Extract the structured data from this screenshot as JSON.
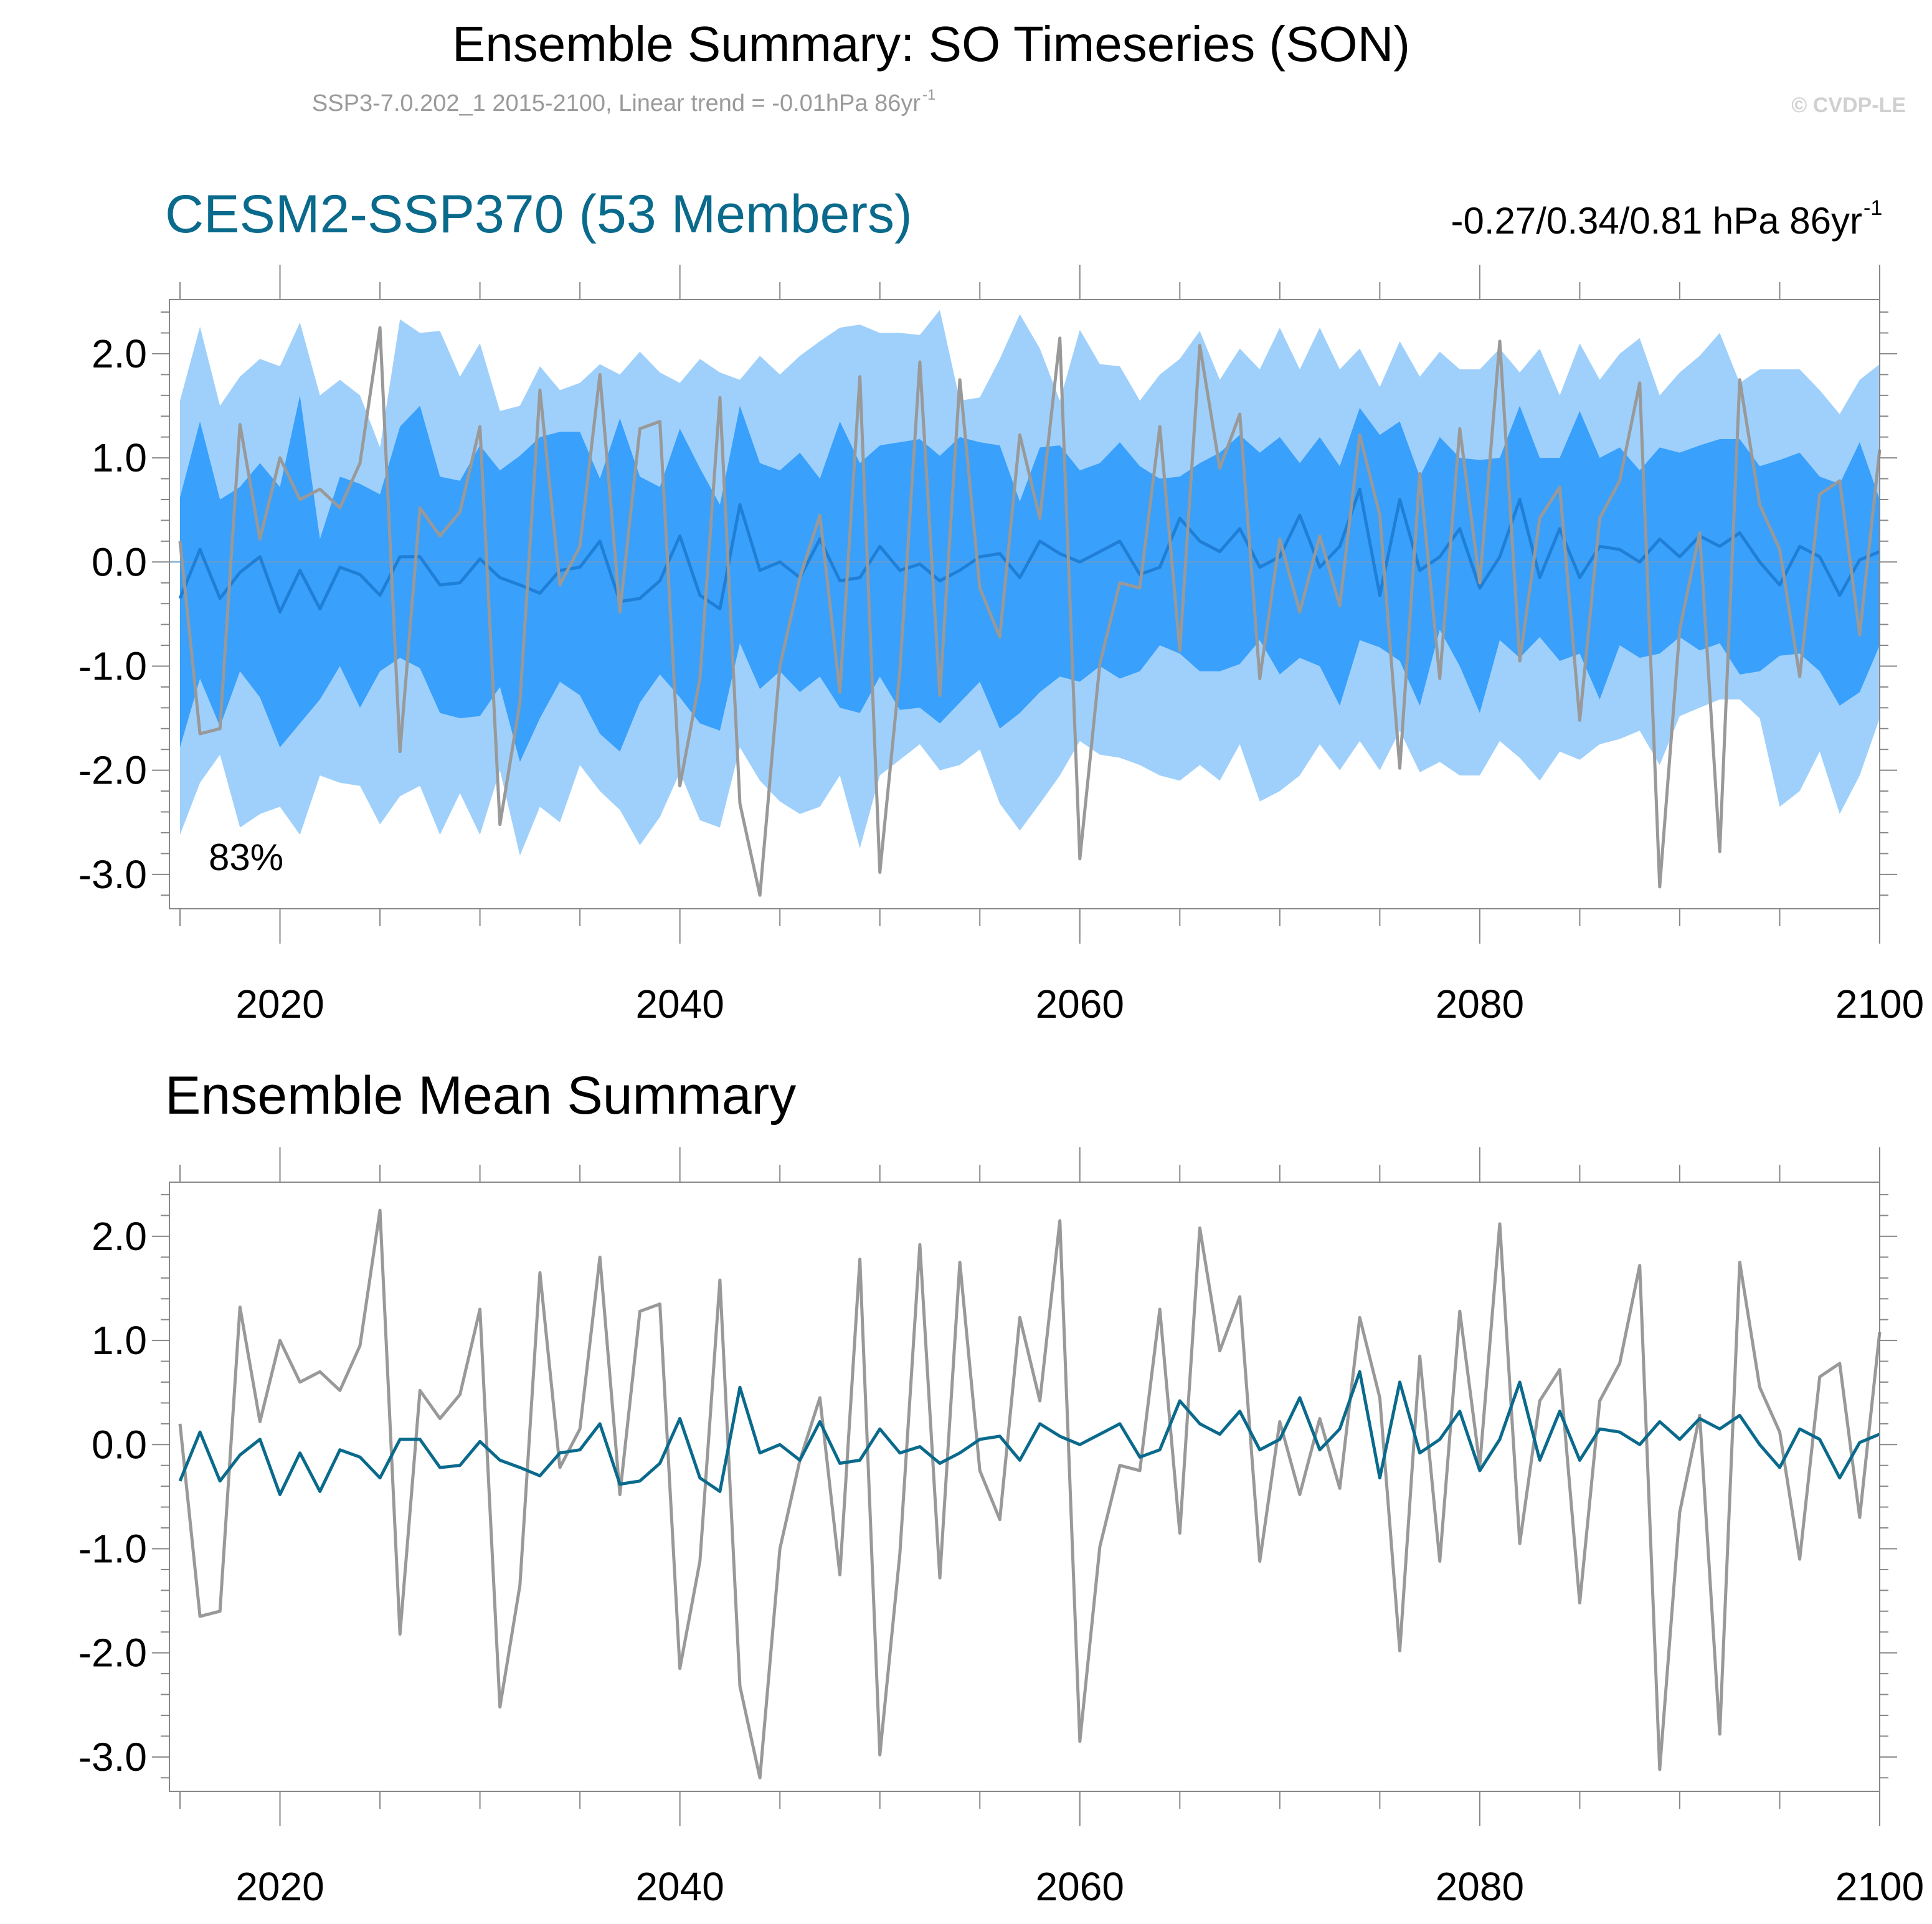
{
  "figure": {
    "title": "Ensemble Summary: SO Timeseries (SON)",
    "subtitle_main": "SSP3-7.0.202_1 2015-2100, Linear trend = -0.01hPa 86yr",
    "subtitle_sup": "-1",
    "copyright": "© CVDP-LE"
  },
  "panels": {
    "top": {
      "title": "CESM2-SSP370 (53 Members)",
      "stats_main": "-0.27/0.34/0.81 hPa 86yr",
      "stats_sup": "-1",
      "percent_label": "83%"
    },
    "bottom": {
      "title": "Ensemble Mean Summary"
    }
  },
  "colors": {
    "outer_band": "#9fd0fb",
    "inner_band": "#39a0fb",
    "ensemble_mean_top": "#1f7fd6",
    "ensemble_mean_bottom": "#0a6a8c",
    "observations": "#999999",
    "frame": "#888888"
  },
  "chart_data": [
    {
      "type": "area",
      "title": "CESM2-SSP370 (53 Members)",
      "xlim": [
        2014,
        2100
      ],
      "ylim": [
        -3.33,
        2.52
      ],
      "x_ticks": [
        2020,
        2040,
        2060,
        2080,
        2100
      ],
      "y_ticks": [
        2.0,
        1.0,
        0.0,
        -1.0,
        -2.0,
        -3.0
      ],
      "y_tick_labels": [
        "2.0",
        "1.0",
        "0.0",
        "-1.0",
        "-2.0",
        "-3.0"
      ],
      "x": [
        2015,
        2016,
        2017,
        2018,
        2019,
        2020,
        2021,
        2022,
        2023,
        2024,
        2025,
        2026,
        2027,
        2028,
        2029,
        2030,
        2031,
        2032,
        2033,
        2034,
        2035,
        2036,
        2037,
        2038,
        2039,
        2040,
        2041,
        2042,
        2043,
        2044,
        2045,
        2046,
        2047,
        2048,
        2049,
        2050,
        2051,
        2052,
        2053,
        2054,
        2055,
        2056,
        2057,
        2058,
        2059,
        2060,
        2061,
        2062,
        2063,
        2064,
        2065,
        2066,
        2067,
        2068,
        2069,
        2070,
        2071,
        2072,
        2073,
        2074,
        2075,
        2076,
        2077,
        2078,
        2079,
        2080,
        2081,
        2082,
        2083,
        2084,
        2085,
        2086,
        2087,
        2088,
        2089,
        2090,
        2091,
        2092,
        2093,
        2094,
        2095,
        2096,
        2097,
        2098,
        2099,
        2100
      ],
      "series": [
        {
          "name": "outer_upper",
          "values": [
            1.55,
            2.26,
            1.5,
            1.78,
            1.95,
            1.88,
            2.3,
            1.6,
            1.75,
            1.6,
            1.1,
            2.33,
            2.2,
            2.22,
            1.78,
            2.1,
            1.45,
            1.5,
            1.88,
            1.65,
            1.72,
            1.9,
            1.8,
            2.02,
            1.82,
            1.72,
            1.95,
            1.82,
            1.75,
            1.98,
            1.8,
            1.98,
            2.12,
            2.25,
            2.28,
            2.2,
            2.2,
            2.18,
            2.42,
            1.55,
            1.58,
            1.95,
            2.38,
            2.05,
            1.55,
            2.23,
            1.9,
            1.88,
            1.55,
            1.8,
            1.95,
            2.22,
            1.75,
            2.05,
            1.85,
            2.25,
            1.85,
            2.25,
            1.85,
            2.05,
            1.68,
            2.12,
            1.78,
            2.02,
            1.85,
            1.85,
            2.05,
            1.82,
            2.05,
            1.6,
            2.1,
            1.75,
            2.0,
            2.15,
            1.6,
            1.82,
            1.98,
            2.2,
            1.72,
            1.85,
            1.85,
            1.85,
            1.65,
            1.42,
            1.75,
            1.9
          ]
        },
        {
          "name": "inner_upper",
          "values": [
            0.62,
            1.35,
            0.6,
            0.72,
            0.95,
            0.72,
            1.6,
            0.22,
            0.82,
            0.75,
            0.65,
            1.3,
            1.5,
            0.82,
            0.78,
            1.12,
            0.88,
            1.02,
            1.2,
            1.25,
            1.25,
            0.8,
            1.38,
            0.82,
            0.72,
            1.28,
            0.9,
            0.55,
            1.5,
            0.95,
            0.88,
            1.05,
            0.8,
            1.35,
            0.95,
            1.12,
            1.15,
            1.18,
            1.02,
            1.2,
            1.15,
            1.12,
            0.58,
            1.1,
            1.12,
            0.88,
            0.95,
            1.15,
            0.92,
            0.8,
            0.82,
            0.95,
            1.05,
            1.22,
            1.05,
            1.2,
            0.95,
            1.2,
            0.92,
            1.48,
            1.22,
            1.35,
            0.82,
            1.2,
            1.0,
            0.98,
            1.0,
            1.5,
            1.0,
            1.0,
            1.45,
            1.0,
            1.1,
            0.88,
            1.1,
            1.05,
            1.12,
            1.18,
            1.18,
            0.92,
            0.98,
            1.05,
            0.82,
            0.75,
            1.15,
            0.6
          ]
        },
        {
          "name": "inner_lower",
          "values": [
            -1.78,
            -1.12,
            -1.58,
            -1.05,
            -1.3,
            -1.78,
            -1.55,
            -1.32,
            -1.0,
            -1.4,
            -1.05,
            -0.92,
            -1.02,
            -1.45,
            -1.5,
            -1.48,
            -1.2,
            -1.92,
            -1.5,
            -1.15,
            -1.28,
            -1.65,
            -1.82,
            -1.35,
            -1.08,
            -1.3,
            -1.55,
            -1.62,
            -0.78,
            -1.22,
            -1.05,
            -1.25,
            -1.1,
            -1.4,
            -1.45,
            -1.1,
            -1.42,
            -1.4,
            -1.55,
            -1.35,
            -1.15,
            -1.6,
            -1.45,
            -1.25,
            -1.1,
            -1.15,
            -1.0,
            -1.12,
            -1.05,
            -0.8,
            -0.88,
            -1.05,
            -1.05,
            -0.98,
            -0.75,
            -1.08,
            -0.92,
            -1.0,
            -1.38,
            -0.75,
            -0.82,
            -0.95,
            -1.38,
            -0.65,
            -1.0,
            -1.45,
            -0.75,
            -0.92,
            -0.72,
            -0.95,
            -0.88,
            -1.32,
            -0.8,
            -0.92,
            -0.88,
            -0.72,
            -0.85,
            -0.78,
            -1.08,
            -1.05,
            -0.9,
            -0.88,
            -1.05,
            -1.38,
            -1.25,
            -0.8
          ]
        },
        {
          "name": "outer_lower",
          "values": [
            -2.62,
            -2.12,
            -1.85,
            -2.55,
            -2.42,
            -2.35,
            -2.62,
            -2.05,
            -2.12,
            -2.15,
            -2.52,
            -2.25,
            -2.15,
            -2.62,
            -2.22,
            -2.62,
            -2.0,
            -2.82,
            -2.35,
            -2.5,
            -1.95,
            -2.2,
            -2.38,
            -2.72,
            -2.45,
            -2.02,
            -2.48,
            -2.55,
            -1.78,
            -2.1,
            -2.3,
            -2.42,
            -2.35,
            -2.05,
            -2.75,
            -2.05,
            -1.9,
            -1.75,
            -2.0,
            -1.95,
            -1.8,
            -2.32,
            -2.58,
            -2.32,
            -2.05,
            -1.72,
            -1.85,
            -1.88,
            -1.95,
            -2.05,
            -2.1,
            -1.95,
            -2.1,
            -1.75,
            -2.3,
            -2.2,
            -2.05,
            -1.75,
            -2.0,
            -1.72,
            -2.0,
            -1.62,
            -2.02,
            -1.92,
            -2.05,
            -2.05,
            -1.72,
            -1.88,
            -2.1,
            -1.82,
            -1.9,
            -1.75,
            -1.7,
            -1.62,
            -1.95,
            -1.48,
            -1.4,
            -1.32,
            -1.32,
            -1.5,
            -2.35,
            -2.2,
            -1.82,
            -2.42,
            -2.05,
            -1.5
          ]
        },
        {
          "name": "ensemble_mean",
          "values": [
            -0.35,
            0.12,
            -0.35,
            -0.1,
            0.05,
            -0.48,
            -0.08,
            -0.45,
            -0.05,
            -0.12,
            -0.32,
            0.05,
            0.05,
            -0.22,
            -0.2,
            0.03,
            -0.15,
            -0.22,
            -0.3,
            -0.08,
            -0.05,
            0.2,
            -0.38,
            -0.35,
            -0.18,
            0.25,
            -0.32,
            -0.45,
            0.55,
            -0.08,
            0.0,
            -0.15,
            0.22,
            -0.18,
            -0.15,
            0.15,
            -0.08,
            -0.02,
            -0.18,
            -0.08,
            0.05,
            0.08,
            -0.15,
            0.2,
            0.08,
            0.0,
            0.1,
            0.2,
            -0.12,
            -0.05,
            0.42,
            0.2,
            0.1,
            0.32,
            -0.05,
            0.05,
            0.45,
            -0.05,
            0.15,
            0.7,
            -0.32,
            0.6,
            -0.08,
            0.05,
            0.32,
            -0.25,
            0.05,
            0.6,
            -0.15,
            0.32,
            -0.15,
            0.15,
            0.12,
            0.0,
            0.22,
            0.05,
            0.25,
            0.15,
            0.28,
            0.0,
            -0.22,
            0.15,
            0.05,
            -0.32,
            0.02,
            0.1
          ]
        },
        {
          "name": "observations",
          "values": [
            0.2,
            -1.65,
            -1.6,
            1.32,
            0.22,
            1.0,
            0.6,
            0.7,
            0.52,
            0.95,
            2.25,
            -1.82,
            0.52,
            0.25,
            0.48,
            1.3,
            -2.52,
            -1.35,
            1.65,
            -0.22,
            0.15,
            1.8,
            -0.48,
            1.28,
            1.35,
            -2.15,
            -1.12,
            1.58,
            -2.32,
            -3.2,
            -1.0,
            -0.15,
            0.45,
            -1.25,
            1.78,
            -2.98,
            -1.05,
            1.92,
            -1.28,
            1.75,
            -0.25,
            -0.72,
            1.22,
            0.42,
            2.15,
            -2.85,
            -0.98,
            -0.2,
            -0.25,
            1.3,
            -0.85,
            2.08,
            0.9,
            1.42,
            -1.12,
            0.22,
            -0.48,
            0.25,
            -0.42,
            1.22,
            0.45,
            -1.98,
            0.85,
            -1.12,
            1.28,
            -0.2,
            2.12,
            -0.95,
            0.42,
            0.72,
            -1.52,
            0.42,
            0.78,
            1.72,
            -3.12,
            -0.65,
            0.28,
            -2.78,
            1.75,
            0.55,
            0.12,
            -1.1,
            0.65,
            0.78,
            -0.7,
            1.08
          ]
        }
      ]
    },
    {
      "type": "line",
      "title": "Ensemble Mean Summary",
      "xlim": [
        2014,
        2100
      ],
      "ylim": [
        -3.33,
        2.52
      ],
      "x_ticks": [
        2020,
        2040,
        2060,
        2080,
        2100
      ],
      "y_ticks": [
        2.0,
        1.0,
        0.0,
        -1.0,
        -2.0,
        -3.0
      ],
      "y_tick_labels": [
        "2.0",
        "1.0",
        "0.0",
        "-1.0",
        "-2.0",
        "-3.0"
      ],
      "x": [
        2015,
        2016,
        2017,
        2018,
        2019,
        2020,
        2021,
        2022,
        2023,
        2024,
        2025,
        2026,
        2027,
        2028,
        2029,
        2030,
        2031,
        2032,
        2033,
        2034,
        2035,
        2036,
        2037,
        2038,
        2039,
        2040,
        2041,
        2042,
        2043,
        2044,
        2045,
        2046,
        2047,
        2048,
        2049,
        2050,
        2051,
        2052,
        2053,
        2054,
        2055,
        2056,
        2057,
        2058,
        2059,
        2060,
        2061,
        2062,
        2063,
        2064,
        2065,
        2066,
        2067,
        2068,
        2069,
        2070,
        2071,
        2072,
        2073,
        2074,
        2075,
        2076,
        2077,
        2078,
        2079,
        2080,
        2081,
        2082,
        2083,
        2084,
        2085,
        2086,
        2087,
        2088,
        2089,
        2090,
        2091,
        2092,
        2093,
        2094,
        2095,
        2096,
        2097,
        2098,
        2099,
        2100
      ],
      "series": [
        {
          "name": "observations",
          "values": [
            0.2,
            -1.65,
            -1.6,
            1.32,
            0.22,
            1.0,
            0.6,
            0.7,
            0.52,
            0.95,
            2.25,
            -1.82,
            0.52,
            0.25,
            0.48,
            1.3,
            -2.52,
            -1.35,
            1.65,
            -0.22,
            0.15,
            1.8,
            -0.48,
            1.28,
            1.35,
            -2.15,
            -1.12,
            1.58,
            -2.32,
            -3.2,
            -1.0,
            -0.15,
            0.45,
            -1.25,
            1.78,
            -2.98,
            -1.05,
            1.92,
            -1.28,
            1.75,
            -0.25,
            -0.72,
            1.22,
            0.42,
            2.15,
            -2.85,
            -0.98,
            -0.2,
            -0.25,
            1.3,
            -0.85,
            2.08,
            0.9,
            1.42,
            -1.12,
            0.22,
            -0.48,
            0.25,
            -0.42,
            1.22,
            0.45,
            -1.98,
            0.85,
            -1.12,
            1.28,
            -0.2,
            2.12,
            -0.95,
            0.42,
            0.72,
            -1.52,
            0.42,
            0.78,
            1.72,
            -3.12,
            -0.65,
            0.28,
            -2.78,
            1.75,
            0.55,
            0.12,
            -1.1,
            0.65,
            0.78,
            -0.7,
            1.08
          ]
        },
        {
          "name": "ensemble_mean",
          "values": [
            -0.35,
            0.12,
            -0.35,
            -0.1,
            0.05,
            -0.48,
            -0.08,
            -0.45,
            -0.05,
            -0.12,
            -0.32,
            0.05,
            0.05,
            -0.22,
            -0.2,
            0.03,
            -0.15,
            -0.22,
            -0.3,
            -0.08,
            -0.05,
            0.2,
            -0.38,
            -0.35,
            -0.18,
            0.25,
            -0.32,
            -0.45,
            0.55,
            -0.08,
            0.0,
            -0.15,
            0.22,
            -0.18,
            -0.15,
            0.15,
            -0.08,
            -0.02,
            -0.18,
            -0.08,
            0.05,
            0.08,
            -0.15,
            0.2,
            0.08,
            0.0,
            0.1,
            0.2,
            -0.12,
            -0.05,
            0.42,
            0.2,
            0.1,
            0.32,
            -0.05,
            0.05,
            0.45,
            -0.05,
            0.15,
            0.7,
            -0.32,
            0.6,
            -0.08,
            0.05,
            0.32,
            -0.25,
            0.05,
            0.6,
            -0.15,
            0.32,
            -0.15,
            0.15,
            0.12,
            0.0,
            0.22,
            0.05,
            0.25,
            0.15,
            0.28,
            0.0,
            -0.22,
            0.15,
            0.05,
            -0.32,
            0.02,
            0.1
          ]
        }
      ]
    }
  ]
}
